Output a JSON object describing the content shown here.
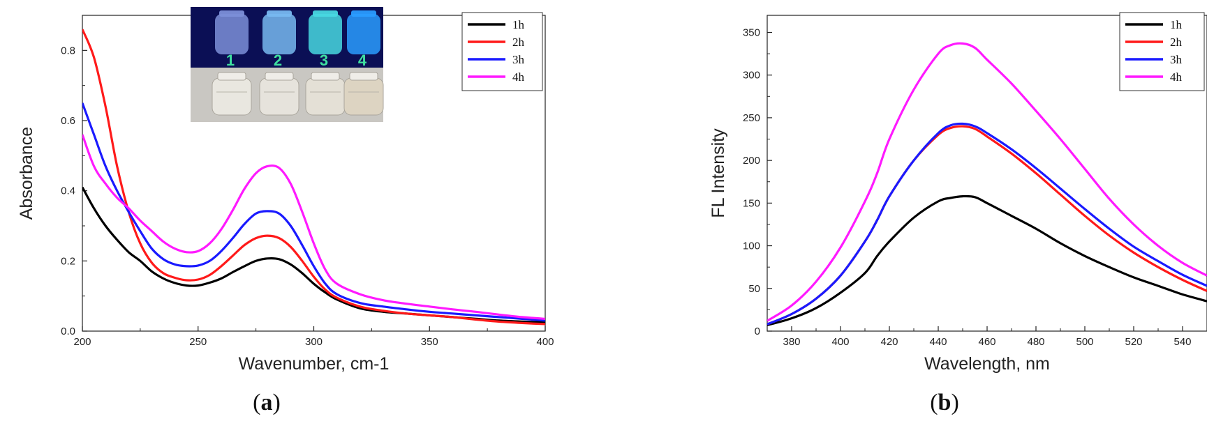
{
  "figure": {
    "panels": [
      {
        "id": "a",
        "label_open": "(",
        "label_letter": "a",
        "label_close": ")"
      },
      {
        "id": "b",
        "label_open": "(",
        "label_letter": "b",
        "label_close": ")"
      }
    ],
    "inset": {
      "description_hidden": "",
      "vial_numbers": [
        "1",
        "2",
        "3",
        "4"
      ],
      "uv_colors": [
        "#7c8fd8",
        "#78b8f0",
        "#48d8e0",
        "#2a9cff"
      ],
      "day_colors": [
        "#e9e7e0",
        "#e6e3dc",
        "#e4e0d6",
        "#ddd4c2"
      ]
    }
  },
  "chart_data": [
    {
      "type": "line",
      "title": "",
      "xlabel": "Wavenumber, cm-1",
      "ylabel": "Absorbance",
      "xlim": [
        200,
        400
      ],
      "ylim": [
        0,
        0.9
      ],
      "xticks": [
        200,
        250,
        300,
        350,
        400
      ],
      "yticks": [
        0.0,
        0.2,
        0.4,
        0.6,
        0.8
      ],
      "ytick_labels": [
        "0.0",
        "0.2",
        "0.4",
        "0.6",
        "0.8"
      ],
      "legend_position": "top-right",
      "grid": false,
      "series": [
        {
          "name": "1h",
          "color": "#000000",
          "x": [
            200,
            205,
            210,
            215,
            220,
            225,
            230,
            235,
            240,
            245,
            250,
            255,
            260,
            265,
            270,
            275,
            280,
            285,
            290,
            295,
            300,
            305,
            310,
            320,
            330,
            340,
            350,
            360,
            370,
            380,
            390,
            400
          ],
          "y": [
            0.41,
            0.35,
            0.3,
            0.26,
            0.225,
            0.2,
            0.17,
            0.15,
            0.137,
            0.13,
            0.13,
            0.138,
            0.15,
            0.168,
            0.185,
            0.2,
            0.207,
            0.205,
            0.19,
            0.165,
            0.135,
            0.11,
            0.09,
            0.065,
            0.055,
            0.05,
            0.045,
            0.04,
            0.035,
            0.03,
            0.027,
            0.025
          ]
        },
        {
          "name": "2h",
          "color": "#ff1a1a",
          "x": [
            200,
            205,
            210,
            215,
            220,
            225,
            230,
            235,
            240,
            245,
            250,
            255,
            260,
            265,
            270,
            275,
            280,
            285,
            290,
            295,
            300,
            305,
            310,
            320,
            330,
            340,
            350,
            360,
            370,
            380,
            390,
            400
          ],
          "y": [
            0.86,
            0.78,
            0.64,
            0.47,
            0.34,
            0.25,
            0.195,
            0.165,
            0.152,
            0.145,
            0.147,
            0.16,
            0.185,
            0.215,
            0.245,
            0.265,
            0.272,
            0.265,
            0.24,
            0.2,
            0.155,
            0.118,
            0.095,
            0.07,
            0.058,
            0.05,
            0.045,
            0.04,
            0.033,
            0.027,
            0.023,
            0.02
          ]
        },
        {
          "name": "3h",
          "color": "#1a1aff",
          "x": [
            200,
            205,
            210,
            215,
            220,
            225,
            230,
            235,
            240,
            245,
            250,
            255,
            260,
            265,
            270,
            275,
            280,
            285,
            290,
            295,
            300,
            305,
            310,
            320,
            330,
            340,
            350,
            360,
            370,
            380,
            390,
            400
          ],
          "y": [
            0.65,
            0.56,
            0.47,
            0.4,
            0.34,
            0.285,
            0.235,
            0.205,
            0.19,
            0.185,
            0.187,
            0.2,
            0.228,
            0.265,
            0.305,
            0.335,
            0.342,
            0.335,
            0.3,
            0.245,
            0.185,
            0.135,
            0.105,
            0.08,
            0.07,
            0.062,
            0.055,
            0.05,
            0.045,
            0.04,
            0.035,
            0.03
          ]
        },
        {
          "name": "4h",
          "color": "#ff1aff",
          "x": [
            200,
            205,
            210,
            215,
            220,
            225,
            230,
            235,
            240,
            245,
            250,
            255,
            260,
            265,
            270,
            275,
            280,
            285,
            290,
            295,
            300,
            305,
            310,
            320,
            330,
            340,
            350,
            360,
            370,
            380,
            390,
            400
          ],
          "y": [
            0.56,
            0.47,
            0.42,
            0.38,
            0.35,
            0.315,
            0.285,
            0.255,
            0.235,
            0.225,
            0.228,
            0.25,
            0.29,
            0.345,
            0.405,
            0.45,
            0.47,
            0.465,
            0.42,
            0.34,
            0.25,
            0.175,
            0.135,
            0.105,
            0.088,
            0.078,
            0.07,
            0.062,
            0.055,
            0.047,
            0.04,
            0.035
          ]
        }
      ]
    },
    {
      "type": "line",
      "title": "",
      "xlabel": "Wavelength, nm",
      "ylabel": "FL Intensity",
      "xlim": [
        370,
        550
      ],
      "ylim": [
        0,
        370
      ],
      "xticks": [
        380,
        400,
        420,
        440,
        460,
        480,
        500,
        520,
        540
      ],
      "yticks": [
        0,
        50,
        100,
        150,
        200,
        250,
        300,
        350
      ],
      "ytick_labels": [
        "0",
        "50",
        "100",
        "150",
        "200",
        "250",
        "300",
        "350"
      ],
      "legend_position": "top-right",
      "grid": false,
      "series": [
        {
          "name": "1h",
          "color": "#000000",
          "x": [
            370,
            380,
            390,
            400,
            410,
            415,
            420,
            430,
            440,
            445,
            450,
            455,
            460,
            470,
            480,
            490,
            500,
            510,
            520,
            530,
            540,
            550
          ],
          "y": [
            7,
            15,
            27,
            45,
            68,
            88,
            105,
            133,
            152,
            156,
            158,
            157,
            150,
            135,
            120,
            103,
            88,
            75,
            63,
            53,
            43,
            35
          ]
        },
        {
          "name": "2h",
          "color": "#ff1a1a",
          "x": [
            370,
            380,
            390,
            400,
            410,
            415,
            420,
            430,
            440,
            445,
            450,
            455,
            460,
            470,
            480,
            490,
            500,
            510,
            520,
            530,
            540,
            550
          ],
          "y": [
            8,
            20,
            38,
            65,
            105,
            130,
            158,
            200,
            230,
            238,
            240,
            237,
            228,
            208,
            185,
            160,
            135,
            112,
            92,
            75,
            60,
            47
          ]
        },
        {
          "name": "3h",
          "color": "#1a1aff",
          "x": [
            370,
            380,
            390,
            400,
            410,
            415,
            420,
            430,
            440,
            445,
            450,
            455,
            460,
            470,
            480,
            490,
            500,
            510,
            520,
            530,
            540,
            550
          ],
          "y": [
            8,
            20,
            38,
            65,
            105,
            130,
            158,
            200,
            232,
            241,
            243,
            240,
            232,
            213,
            191,
            167,
            143,
            120,
            99,
            82,
            66,
            53
          ]
        },
        {
          "name": "4h",
          "color": "#ff1aff",
          "x": [
            370,
            380,
            390,
            400,
            410,
            415,
            420,
            430,
            440,
            445,
            450,
            455,
            460,
            470,
            480,
            490,
            500,
            510,
            520,
            530,
            540,
            550
          ],
          "y": [
            12,
            30,
            58,
            98,
            152,
            185,
            225,
            283,
            325,
            335,
            337,
            332,
            318,
            290,
            258,
            225,
            190,
            155,
            125,
            100,
            80,
            65
          ]
        }
      ]
    }
  ]
}
